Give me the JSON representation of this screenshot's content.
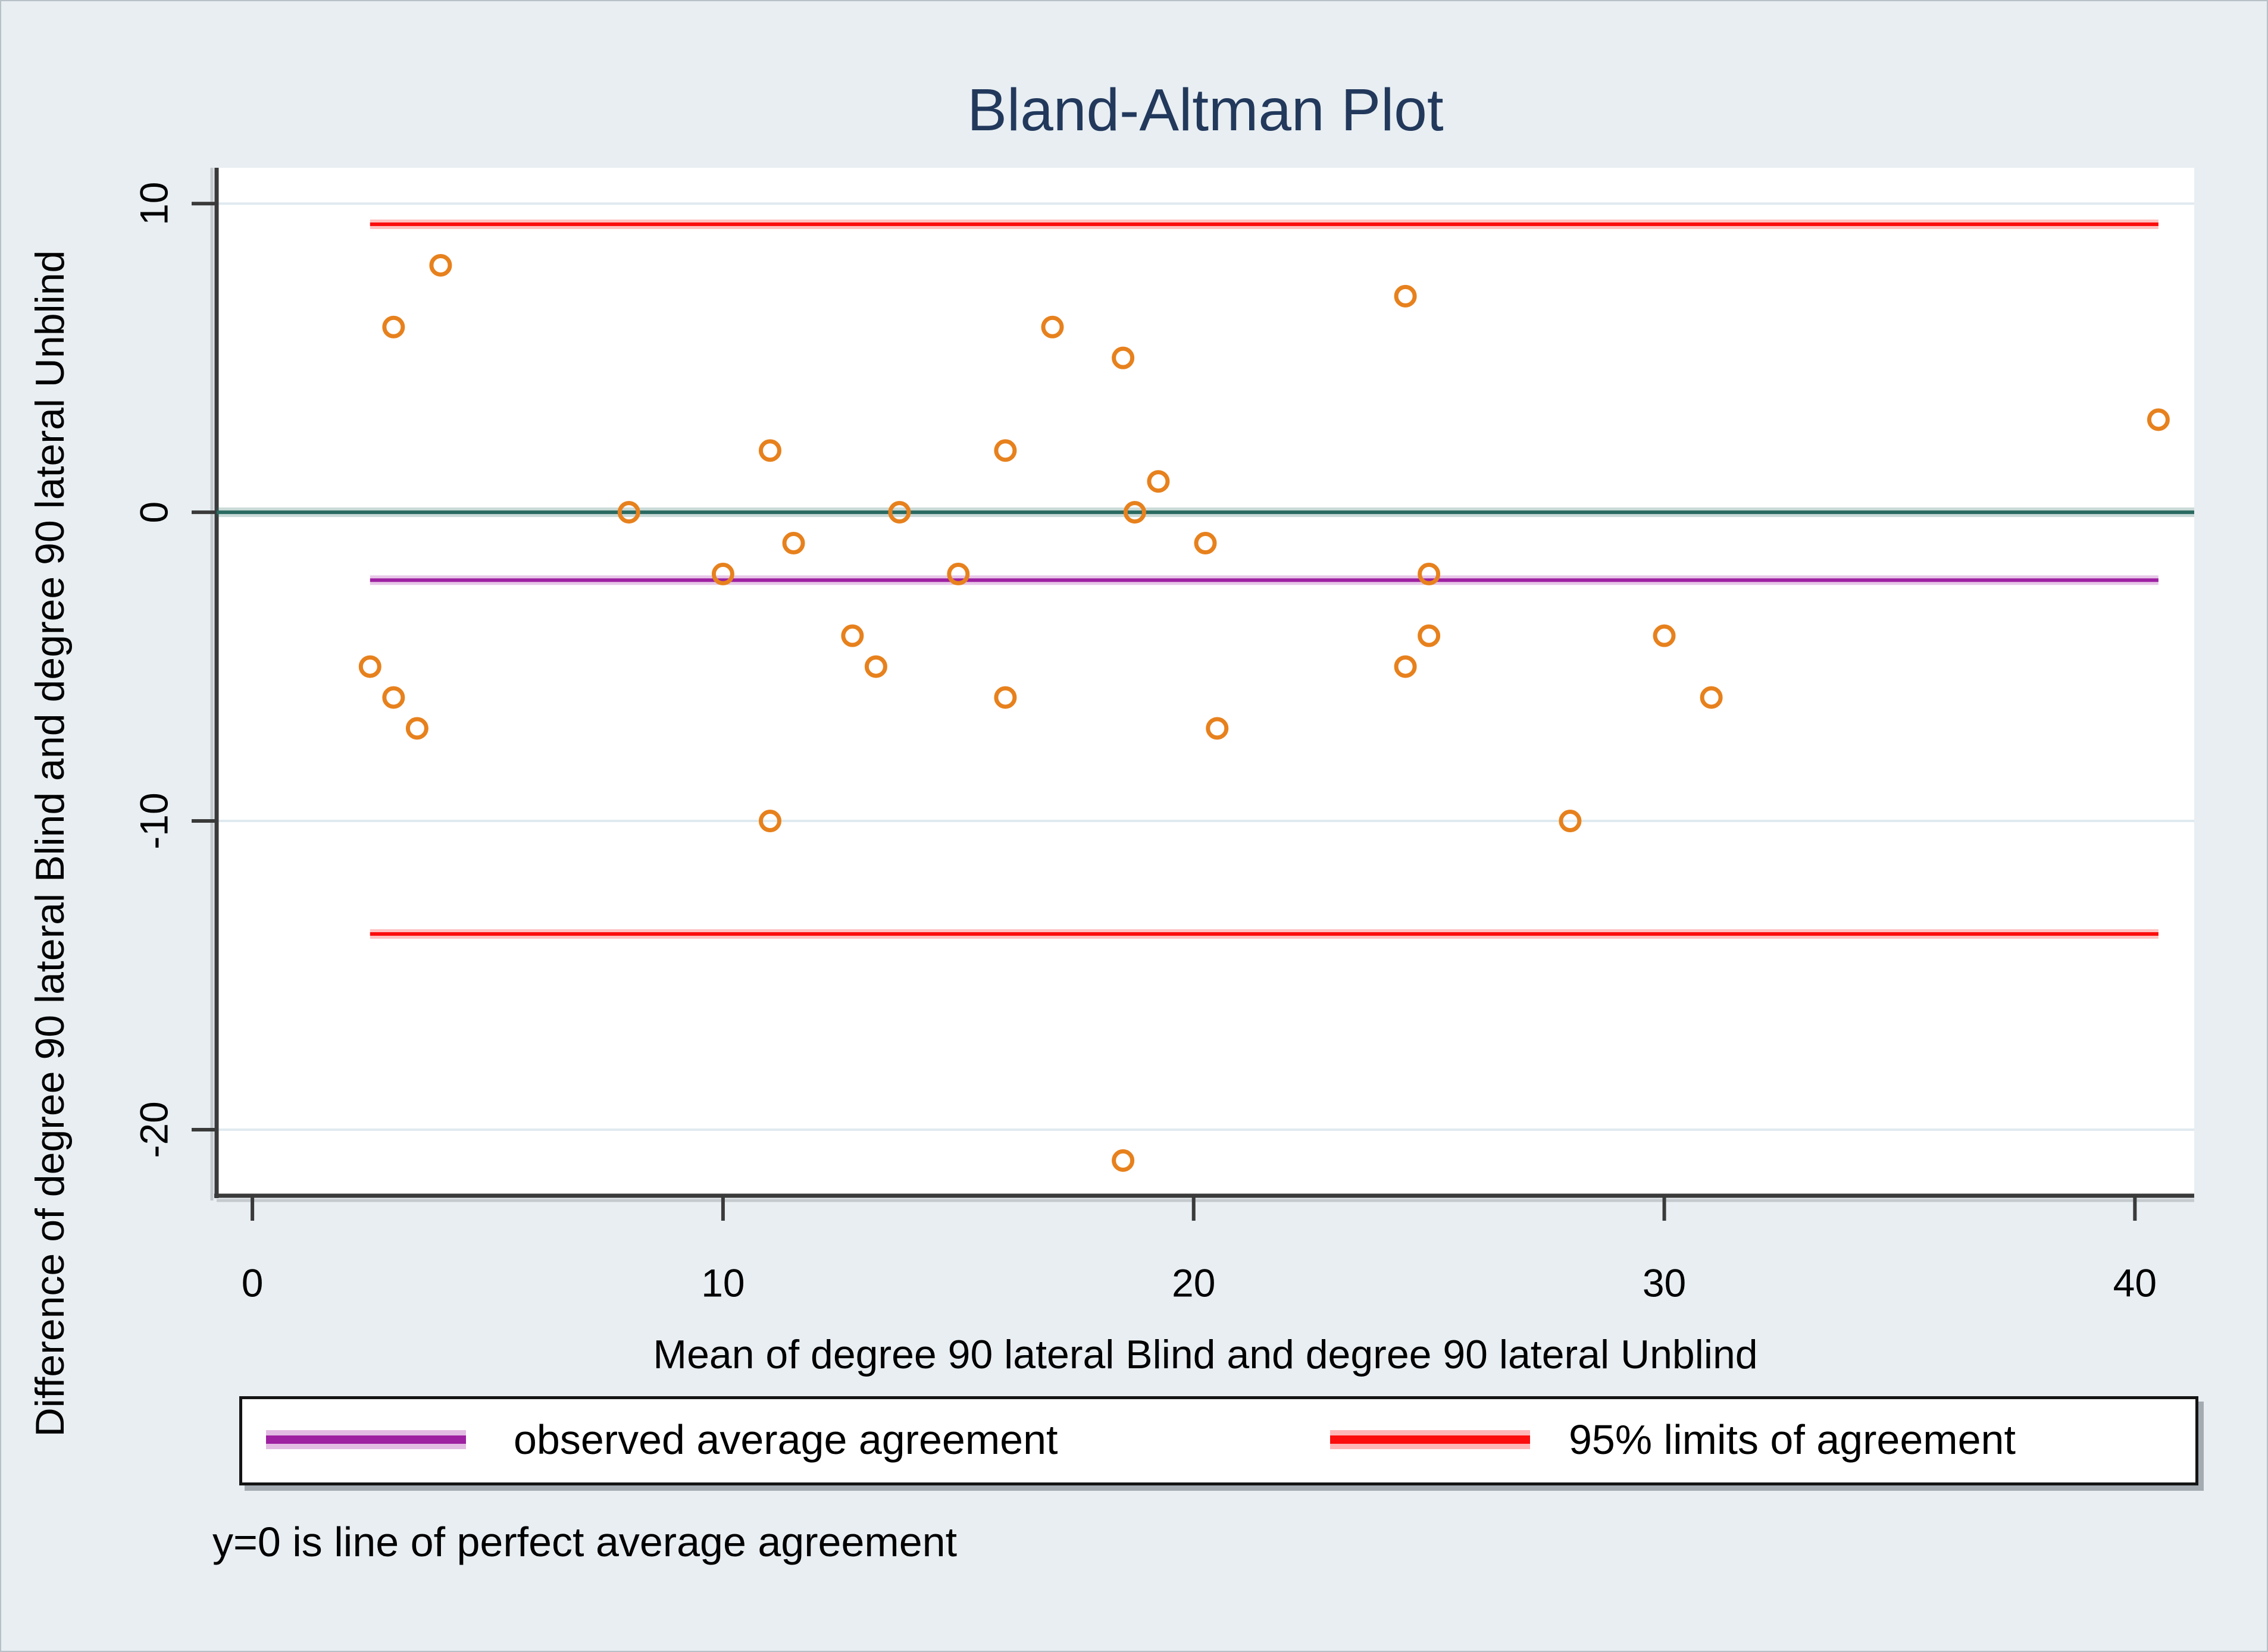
{
  "title": "Bland-Altman Plot",
  "note": "y=0 is line of perfect average agreement",
  "legend": {
    "items": [
      {
        "label": "observed average agreement",
        "color": "#9e21a1"
      },
      {
        "label": "95% limits of agreement",
        "color": "#fb0d0d"
      }
    ]
  },
  "chart_data": {
    "type": "scatter",
    "title": "Bland-Altman Plot",
    "xlabel": "Mean of degree 90 lateral Blind and degree 90 lateral Unblind",
    "ylabel": "Difference of degree 90 lateral Blind and degree 90 lateral Unblind",
    "xlim": [
      -0.76,
      41.26
    ],
    "ylim": [
      -22.14,
      11.16
    ],
    "x_ticks": [
      0,
      10,
      20,
      30,
      40
    ],
    "y_ticks": [
      10,
      0,
      -10,
      -20
    ],
    "grid": "horizontal",
    "legend_position": "bottom",
    "marker": {
      "shape": "circle",
      "color": "#e7811d",
      "fill": "none"
    },
    "points": [
      [
        3,
        6
      ],
      [
        4,
        8
      ],
      [
        2.5,
        -5
      ],
      [
        3,
        -6
      ],
      [
        3.5,
        -7
      ],
      [
        8,
        0
      ],
      [
        10,
        -2
      ],
      [
        11,
        2
      ],
      [
        11.5,
        -1
      ],
      [
        12.75,
        -4
      ],
      [
        13.25,
        -5
      ],
      [
        13.75,
        0
      ],
      [
        11,
        -10
      ],
      [
        15,
        -2
      ],
      [
        16,
        2
      ],
      [
        16,
        -6
      ],
      [
        17,
        6
      ],
      [
        18.5,
        5
      ],
      [
        18.75,
        0
      ],
      [
        19.25,
        1
      ],
      [
        20.25,
        -1
      ],
      [
        20.5,
        -7
      ],
      [
        18.5,
        -21
      ],
      [
        24.5,
        7
      ],
      [
        24.5,
        -5
      ],
      [
        25,
        -2
      ],
      [
        25,
        -4
      ],
      [
        28,
        -10
      ],
      [
        30,
        -4
      ],
      [
        31,
        -6
      ],
      [
        40.5,
        3
      ]
    ],
    "reference_lines": [
      {
        "name": "perfect average agreement (y=0)",
        "y": 0,
        "color": "#2a6a60",
        "x_start": -0.76,
        "x_end": 41.26
      },
      {
        "name": "observed average agreement",
        "y": -2.2,
        "color": "#9e21a1",
        "x_start": 2.5,
        "x_end": 40.5
      },
      {
        "name": "95% limits of agreement (upper)",
        "y": 9.33,
        "color": "#fb0d0d",
        "x_start": 2.5,
        "x_end": 40.5
      },
      {
        "name": "95% limits of agreement (lower)",
        "y": -13.66,
        "color": "#fb0d0d",
        "x_start": 2.5,
        "x_end": 40.5
      }
    ]
  }
}
